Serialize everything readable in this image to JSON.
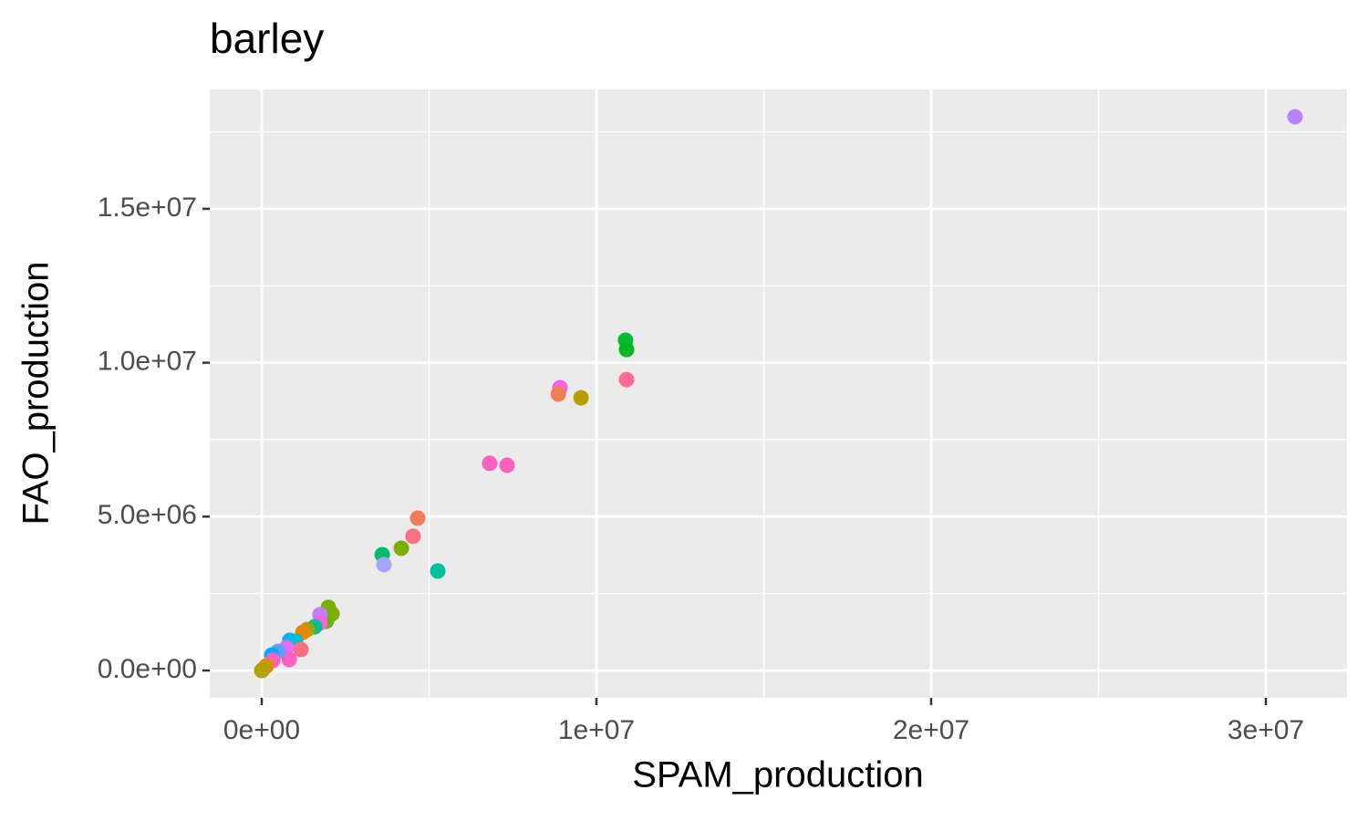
{
  "chart_data": {
    "type": "scatter",
    "title": "barley",
    "x_label": "SPAM_production",
    "y_label": "FAO_production",
    "x": [
      30870000,
      10870000,
      10900000,
      10900000,
      8910000,
      8860000,
      9540000,
      6810000,
      7330000,
      4660000,
      4520000,
      4170000,
      3600000,
      3650000,
      5260000,
      1990000,
      2100000,
      1930000,
      1740000,
      1740000,
      1580000,
      1360000,
      1230000,
      840000,
      1010000,
      1170000,
      740000,
      820000,
      490000,
      300000,
      330000,
      140000,
      0,
      30000
    ],
    "y": [
      17990000,
      10730000,
      10430000,
      9450000,
      9190000,
      8980000,
      8860000,
      6730000,
      6670000,
      4950000,
      4360000,
      3970000,
      3760000,
      3440000,
      3230000,
      2050000,
      1840000,
      1600000,
      1810000,
      1540000,
      1420000,
      1330000,
      1240000,
      980000,
      950000,
      680000,
      740000,
      360000,
      620000,
      500000,
      330000,
      150000,
      0,
      30000
    ],
    "colors": [
      "#b983ff",
      "#00ba38",
      "#00b81f",
      "#ff6c91",
      "#f564e3",
      "#f17d50",
      "#b79f00",
      "#ff62bc",
      "#ff62bc",
      "#f37b59",
      "#fd6f86",
      "#7cae00",
      "#00be67",
      "#a3a5ff",
      "#00c19a",
      "#7cae00",
      "#7cae00",
      "#6bb100",
      "#c77cff",
      "#f564e3",
      "#00c08b",
      "#a3a500",
      "#e58700",
      "#00b0f6",
      "#00bcd8",
      "#fd6f86",
      "#e76bf3",
      "#ff61c3",
      "#619cff",
      "#00a9ff",
      "#ff62bc",
      "#e68613",
      "#a3a500",
      "#b79f00"
    ],
    "xlim": [
      -1553000,
      32425000
    ],
    "ylim": [
      -889000,
      18880000
    ],
    "xticks": [
      {
        "value": 0,
        "label": "0e+00"
      },
      {
        "value": 10000000,
        "label": "1e+07"
      },
      {
        "value": 20000000,
        "label": "2e+07"
      },
      {
        "value": 30000000,
        "label": "3e+07"
      }
    ],
    "yticks": [
      {
        "value": 0,
        "label": "0.0e+00"
      },
      {
        "value": 5000000,
        "label": "5.0e+06"
      },
      {
        "value": 10000000,
        "label": "1.0e+07"
      },
      {
        "value": 15000000,
        "label": "1.5e+07"
      }
    ],
    "xminorticks": [
      5000000,
      15000000,
      25000000
    ],
    "yminorticks": [
      2500000,
      7500000,
      12500000,
      17500000
    ],
    "grid": true
  }
}
